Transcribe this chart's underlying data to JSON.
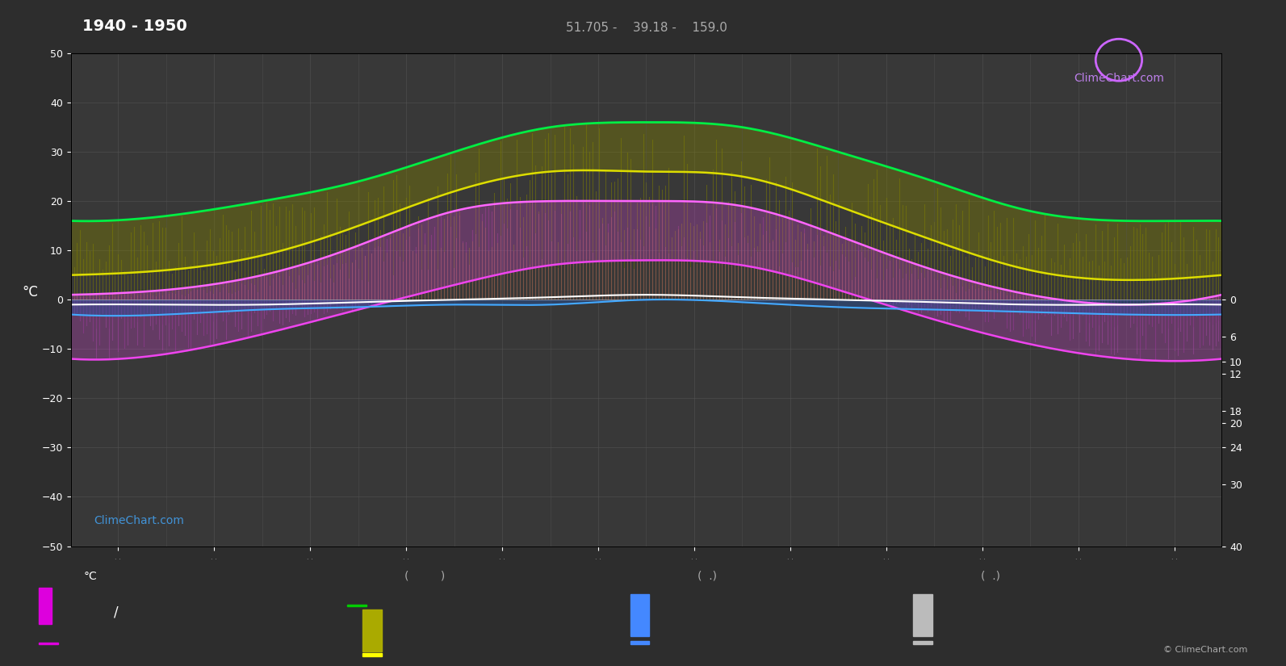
{
  "title": "1940 - 1950",
  "subtitle": "51.705 -    39.18 -    159.0",
  "ylabel_left": "°C",
  "background_color": "#2d2d2d",
  "plot_bg_color": "#383838",
  "ylim": [
    -50,
    50
  ],
  "ylim_right": [
    -40,
    24
  ],
  "xlim": [
    0,
    365
  ],
  "grid_color": "#555555",
  "months": 12,
  "green_line": [
    16,
    17,
    20,
    24,
    30,
    35,
    36,
    35,
    30,
    24,
    18,
    16
  ],
  "yellow_line": [
    5,
    6,
    9,
    15,
    22,
    26,
    26,
    25,
    19,
    12,
    6,
    4
  ],
  "pink_line_upper": [
    1,
    2,
    5,
    11,
    18,
    20,
    20,
    19,
    13,
    6,
    1,
    -1
  ],
  "pink_line_lower": [
    -12,
    -11,
    -7,
    -2,
    3,
    7,
    8,
    7,
    2,
    -4,
    -9,
    -12
  ],
  "white_line": [
    -1,
    -1,
    -1,
    -0.5,
    0,
    0.5,
    1,
    0.5,
    0,
    -0.5,
    -1,
    -1
  ],
  "blue_line": [
    -3,
    -3,
    -2,
    -1.5,
    -1,
    -1,
    0,
    -0.5,
    -1.5,
    -2,
    -2.5,
    -3
  ],
  "watermark_bottom_left": "ClimeChart.com",
  "watermark_top_right": "ClimeChart.com",
  "copyright": "© ClimeChart.com"
}
